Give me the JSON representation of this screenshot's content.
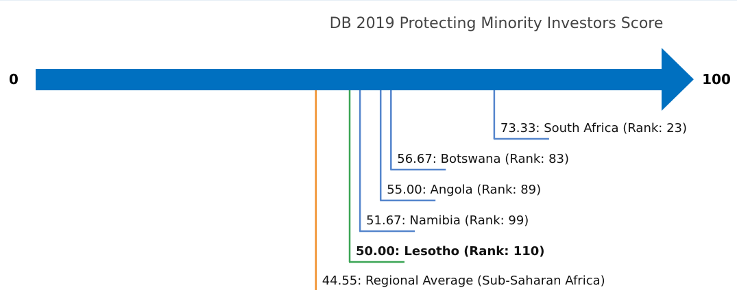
{
  "chart_data": {
    "type": "number-line",
    "title": "DB 2019 Protecting Minority Investors Score",
    "xlim": [
      0,
      100
    ],
    "xticks": [
      0,
      100
    ],
    "axis_color": "#0070c0",
    "items": [
      {
        "label": "73.33: South Africa (Rank: 23)",
        "value": 73.33,
        "color": "#5585cc",
        "bold": false
      },
      {
        "label": "56.67: Botswana (Rank: 83)",
        "value": 56.67,
        "color": "#5585cc",
        "bold": false
      },
      {
        "label": "55.00: Angola (Rank: 89)",
        "value": 55.0,
        "color": "#5585cc",
        "bold": false
      },
      {
        "label": "51.67: Namibia (Rank: 99)",
        "value": 51.67,
        "color": "#5585cc",
        "bold": false
      },
      {
        "label": "50.00: Lesotho (Rank: 110)",
        "value": 50.0,
        "color": "#3ba555",
        "bold": true
      },
      {
        "label": "44.55: Regional Average (Sub-Saharan Africa)",
        "value": 44.55,
        "color": "#f0902c",
        "bold": false
      }
    ]
  }
}
